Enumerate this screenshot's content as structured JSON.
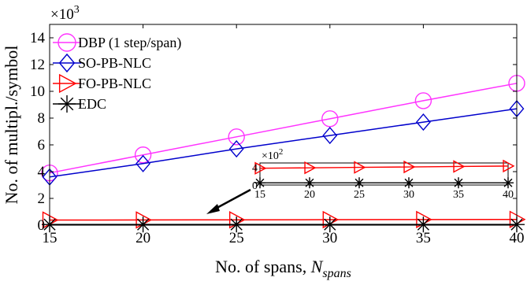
{
  "chart_data": {
    "type": "line",
    "x": [
      15,
      20,
      25,
      30,
      35,
      40
    ],
    "xlabel": "No. of spans, ",
    "xlabel_italic": "N",
    "xlabel_subscript": "spans",
    "ylabel": "No. of multipl./symbol",
    "y_multiplier": "×10",
    "y_multiplier_exp": "3",
    "xlim": [
      15,
      40
    ],
    "ylim": [
      0,
      15
    ],
    "xticks": [
      "15",
      "20",
      "25",
      "30",
      "35",
      "40"
    ],
    "yticks": [
      "0",
      "2",
      "4",
      "6",
      "8",
      "10",
      "12",
      "14"
    ],
    "grid": false,
    "legend_position": "top-left",
    "series": [
      {
        "name": "DBP (1 step/span)",
        "color": "#ff33ff",
        "marker_color": "#ff33ff",
        "marker": "circle",
        "values": [
          3.9,
          5.25,
          6.6,
          7.95,
          9.3,
          10.6
        ]
      },
      {
        "name": "SO-PB-NLC",
        "color": "#0000cc",
        "marker_color": "#0000cc",
        "marker": "diamond",
        "values": [
          3.6,
          4.6,
          5.7,
          6.7,
          7.7,
          8.7
        ]
      },
      {
        "name": "FO-PB-NLC",
        "color": "#ff0000",
        "marker_color": "#ff0000",
        "marker": "triangle-right",
        "values": [
          0.38,
          0.39,
          0.4,
          0.41,
          0.42,
          0.43
        ]
      },
      {
        "name": "EDC",
        "color": "#000000",
        "marker_color": "#000000",
        "marker": "asterisk",
        "values": [
          0.05,
          0.05,
          0.05,
          0.05,
          0.05,
          0.05
        ]
      }
    ],
    "inset": {
      "multiplier": "×10",
      "multiplier_exp": "2",
      "xticks": [
        "15",
        "20",
        "25",
        "30",
        "35",
        "40"
      ],
      "yticks": [
        "0",
        "4"
      ],
      "ylim": [
        0,
        5
      ],
      "series": [
        {
          "name": "FO-PB-NLC",
          "color": "#ff0000",
          "marker": "triangle-right",
          "values": [
            3.8,
            3.9,
            4.0,
            4.1,
            4.2,
            4.3
          ]
        },
        {
          "name": "EDC",
          "color": "#000000",
          "marker": "asterisk",
          "values": [
            0.5,
            0.5,
            0.5,
            0.5,
            0.5,
            0.5
          ]
        }
      ]
    }
  }
}
